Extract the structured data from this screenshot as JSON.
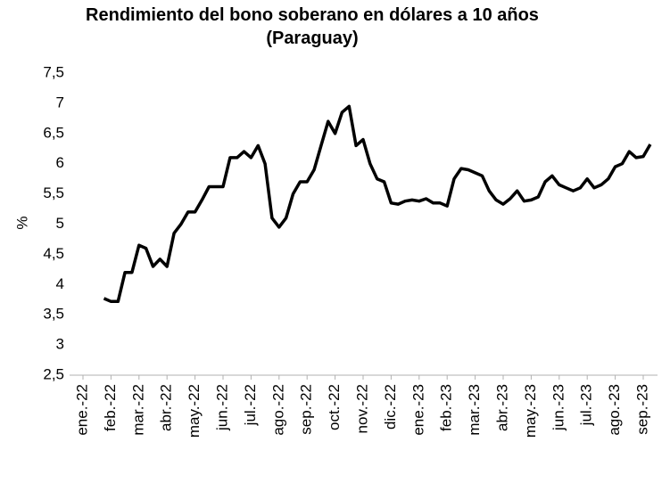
{
  "chart_data": {
    "type": "line",
    "title": "Rendimiento del bono soberano en dólares a 10 años (Paraguay)",
    "ylabel": "%",
    "categories": [
      "ene.-22",
      null,
      null,
      null,
      "feb.-22",
      null,
      null,
      null,
      "mar.-22",
      null,
      null,
      null,
      "abr.-22",
      null,
      null,
      null,
      "may.-22",
      null,
      null,
      null,
      "jun.-22",
      null,
      null,
      null,
      "jul.-22",
      null,
      null,
      null,
      "ago.-22",
      null,
      null,
      null,
      "sep.-22",
      null,
      null,
      null,
      "oct.-22",
      null,
      null,
      null,
      "nov.-22",
      null,
      null,
      null,
      "dic.-22",
      null,
      null,
      null,
      "ene.-23",
      null,
      null,
      null,
      "feb.-23",
      null,
      null,
      null,
      "mar.-23",
      null,
      null,
      null,
      "abr.-23",
      null,
      null,
      null,
      "may.-23",
      null,
      null,
      null,
      "jun.-23",
      null,
      null,
      null,
      "jul.-23",
      null,
      null,
      null,
      "ago.-23",
      null,
      null,
      null,
      "sep.-23",
      null
    ],
    "series": [
      {
        "color": "#000000",
        "values": [
          null,
          null,
          null,
          3.77,
          3.72,
          3.72,
          4.2,
          4.2,
          4.65,
          4.6,
          4.3,
          4.42,
          4.3,
          4.85,
          5.0,
          5.2,
          5.2,
          5.4,
          5.62,
          5.62,
          5.62,
          6.1,
          6.1,
          6.2,
          6.1,
          6.3,
          6.0,
          5.1,
          4.95,
          5.1,
          5.5,
          5.7,
          5.7,
          5.9,
          6.3,
          6.7,
          6.5,
          6.85,
          6.95,
          6.3,
          6.4,
          6.0,
          5.75,
          5.7,
          5.35,
          5.33,
          5.38,
          5.4,
          5.38,
          5.42,
          5.35,
          5.35,
          5.3,
          5.75,
          5.92,
          5.9,
          5.85,
          5.8,
          5.55,
          5.4,
          5.33,
          5.42,
          5.55,
          5.38,
          5.4,
          5.45,
          5.7,
          5.8,
          5.65,
          5.6,
          5.55,
          5.6,
          5.75,
          5.6,
          5.65,
          5.75,
          5.95,
          6.0,
          6.2,
          6.1,
          6.12,
          6.32
        ]
      }
    ],
    "ylim": [
      2.5,
      7.5
    ],
    "yticks": [
      {
        "value": 2.5,
        "label": "2,5"
      },
      3,
      {
        "value": 3.5,
        "label": "3,5"
      },
      4,
      {
        "value": 4.5,
        "label": "4,5"
      },
      5,
      {
        "value": 5.5,
        "label": "5,5"
      },
      6,
      {
        "value": 6.5,
        "label": "6,5"
      },
      7,
      {
        "value": 7.5,
        "label": "7,5"
      }
    ],
    "grid": false
  }
}
